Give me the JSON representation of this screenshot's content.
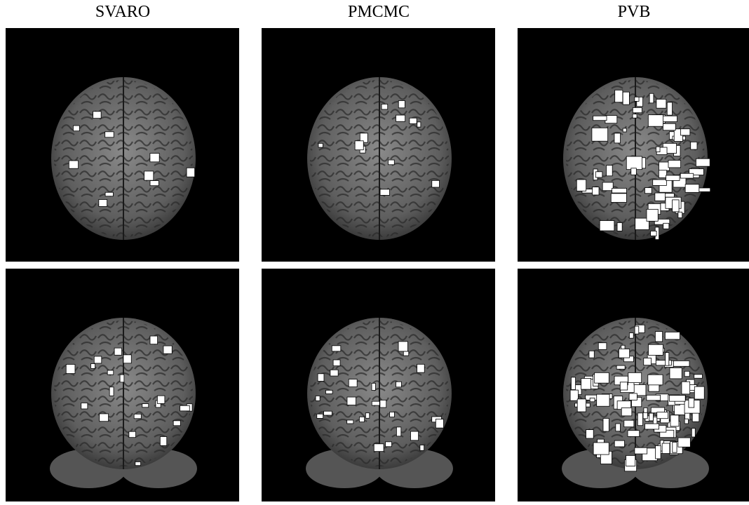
{
  "columns": [
    {
      "title": "SVARO"
    },
    {
      "title": "PMCMC"
    },
    {
      "title": "PVB"
    }
  ]
}
